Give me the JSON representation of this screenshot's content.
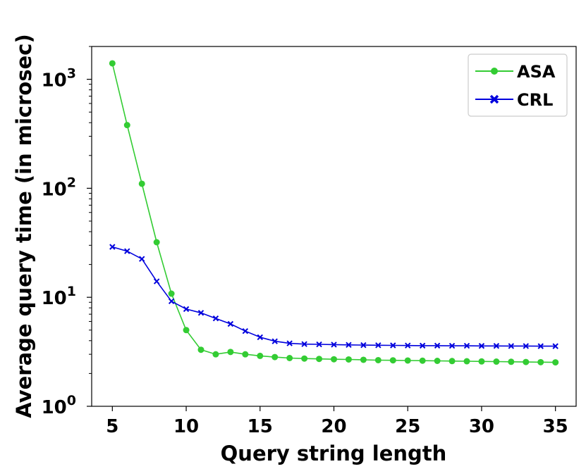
{
  "chart_data": {
    "type": "line",
    "xlabel": "Query string length",
    "ylabel": "Average query time (in microsec)",
    "yscale": "log",
    "xlim": [
      3.6,
      36.4
    ],
    "ylim": [
      1,
      2000
    ],
    "x_ticks": [
      5,
      10,
      15,
      20,
      25,
      30,
      35
    ],
    "y_ticks": [
      {
        "value": 1,
        "base": "10",
        "exp": "0"
      },
      {
        "value": 10,
        "base": "10",
        "exp": "1"
      },
      {
        "value": 100,
        "base": "10",
        "exp": "2"
      },
      {
        "value": 1000,
        "base": "10",
        "exp": "3"
      }
    ],
    "legend_position": "top-right",
    "x": [
      5,
      6,
      7,
      8,
      9,
      10,
      11,
      12,
      13,
      14,
      15,
      16,
      17,
      18,
      19,
      20,
      21,
      22,
      23,
      24,
      25,
      26,
      27,
      28,
      29,
      30,
      31,
      32,
      33,
      34,
      35
    ],
    "series": [
      {
        "name": "ASA",
        "color": "#33cc33",
        "marker": "circle",
        "values": [
          1400,
          380,
          110,
          32,
          10.8,
          5.0,
          3.3,
          3.0,
          3.15,
          3.0,
          2.9,
          2.83,
          2.77,
          2.74,
          2.72,
          2.7,
          2.69,
          2.67,
          2.65,
          2.64,
          2.63,
          2.62,
          2.61,
          2.6,
          2.59,
          2.58,
          2.57,
          2.56,
          2.55,
          2.54,
          2.53
        ]
      },
      {
        "name": "CRL",
        "color": "#0000dd",
        "marker": "x",
        "values": [
          29,
          26.5,
          22.5,
          14,
          9.2,
          7.8,
          7.2,
          6.4,
          5.7,
          4.9,
          4.3,
          3.95,
          3.78,
          3.72,
          3.7,
          3.68,
          3.66,
          3.64,
          3.63,
          3.62,
          3.61,
          3.6,
          3.6,
          3.59,
          3.59,
          3.58,
          3.58,
          3.57,
          3.57,
          3.56,
          3.56
        ]
      }
    ]
  }
}
